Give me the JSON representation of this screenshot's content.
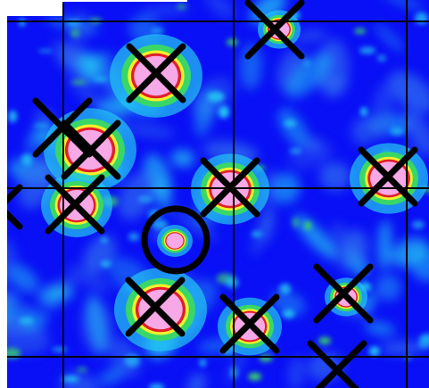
{
  "colors": {
    "background": "#0a10f5",
    "mid": "#2f6cf0",
    "low": "#23c6f2",
    "green": "#39d668",
    "yellow": "#f2f22a",
    "red": "#e11e2a",
    "peak": "#f7a8e6",
    "marker": "#000000",
    "grid": "#000000"
  },
  "marker_types": {
    "cross": "x-marker",
    "circle": "circle-marker"
  },
  "markers": [
    {
      "type": "cross"
    },
    {
      "type": "cross"
    },
    {
      "type": "cross"
    },
    {
      "type": "cross"
    },
    {
      "type": "cross"
    },
    {
      "type": "cross"
    },
    {
      "type": "cross"
    },
    {
      "type": "cross"
    },
    {
      "type": "cross"
    },
    {
      "type": "cross"
    },
    {
      "type": "cross"
    },
    {
      "type": "cross"
    },
    {
      "type": "circle"
    }
  ]
}
